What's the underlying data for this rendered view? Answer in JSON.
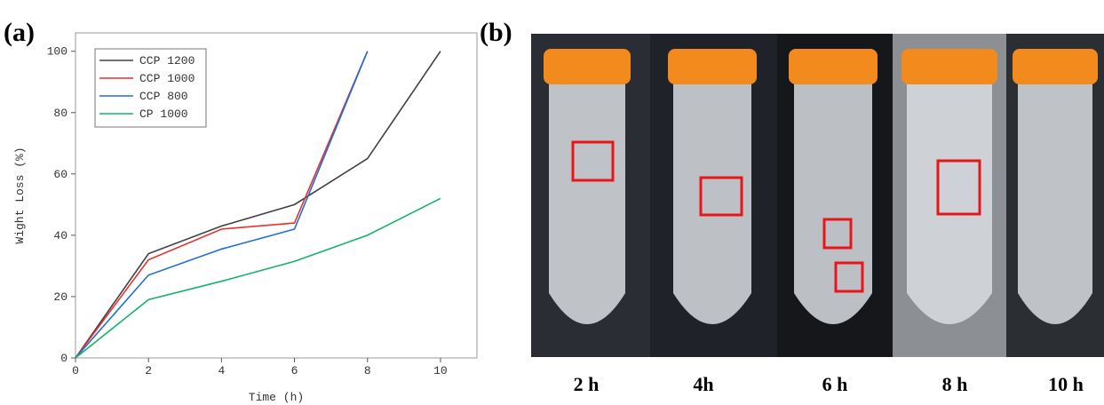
{
  "panel_labels": [
    "(a)",
    "(b)"
  ],
  "chart_data": {
    "type": "line",
    "xlabel": "Time (h)",
    "ylabel": "Wight Loss (%)",
    "x": [
      0,
      2,
      4,
      6,
      8,
      10
    ],
    "series": [
      {
        "name": "CCP 1200",
        "color": "#404040",
        "values": [
          0,
          34,
          43,
          50,
          65,
          100
        ]
      },
      {
        "name": "CCP 1000",
        "color": "#e8312f",
        "values": [
          0,
          32,
          42,
          44,
          100,
          null
        ]
      },
      {
        "name": "CCP 800",
        "color": "#1f6fd1",
        "values": [
          0,
          27,
          35.5,
          42,
          100,
          null
        ]
      },
      {
        "name": "CP 1000",
        "color": "#17b26a",
        "values": [
          0,
          19,
          25,
          31.5,
          40,
          52
        ]
      }
    ],
    "xlim": [
      0,
      11
    ],
    "ylim": [
      0,
      106
    ],
    "xticks": [
      0,
      2,
      4,
      6,
      8,
      10
    ],
    "yticks": [
      0,
      20,
      40,
      60,
      80,
      100
    ],
    "grid": false,
    "legend": "upper left"
  },
  "photo_captions": [
    "2 h",
    "4h",
    "6 h",
    "8 h",
    "10 h"
  ]
}
